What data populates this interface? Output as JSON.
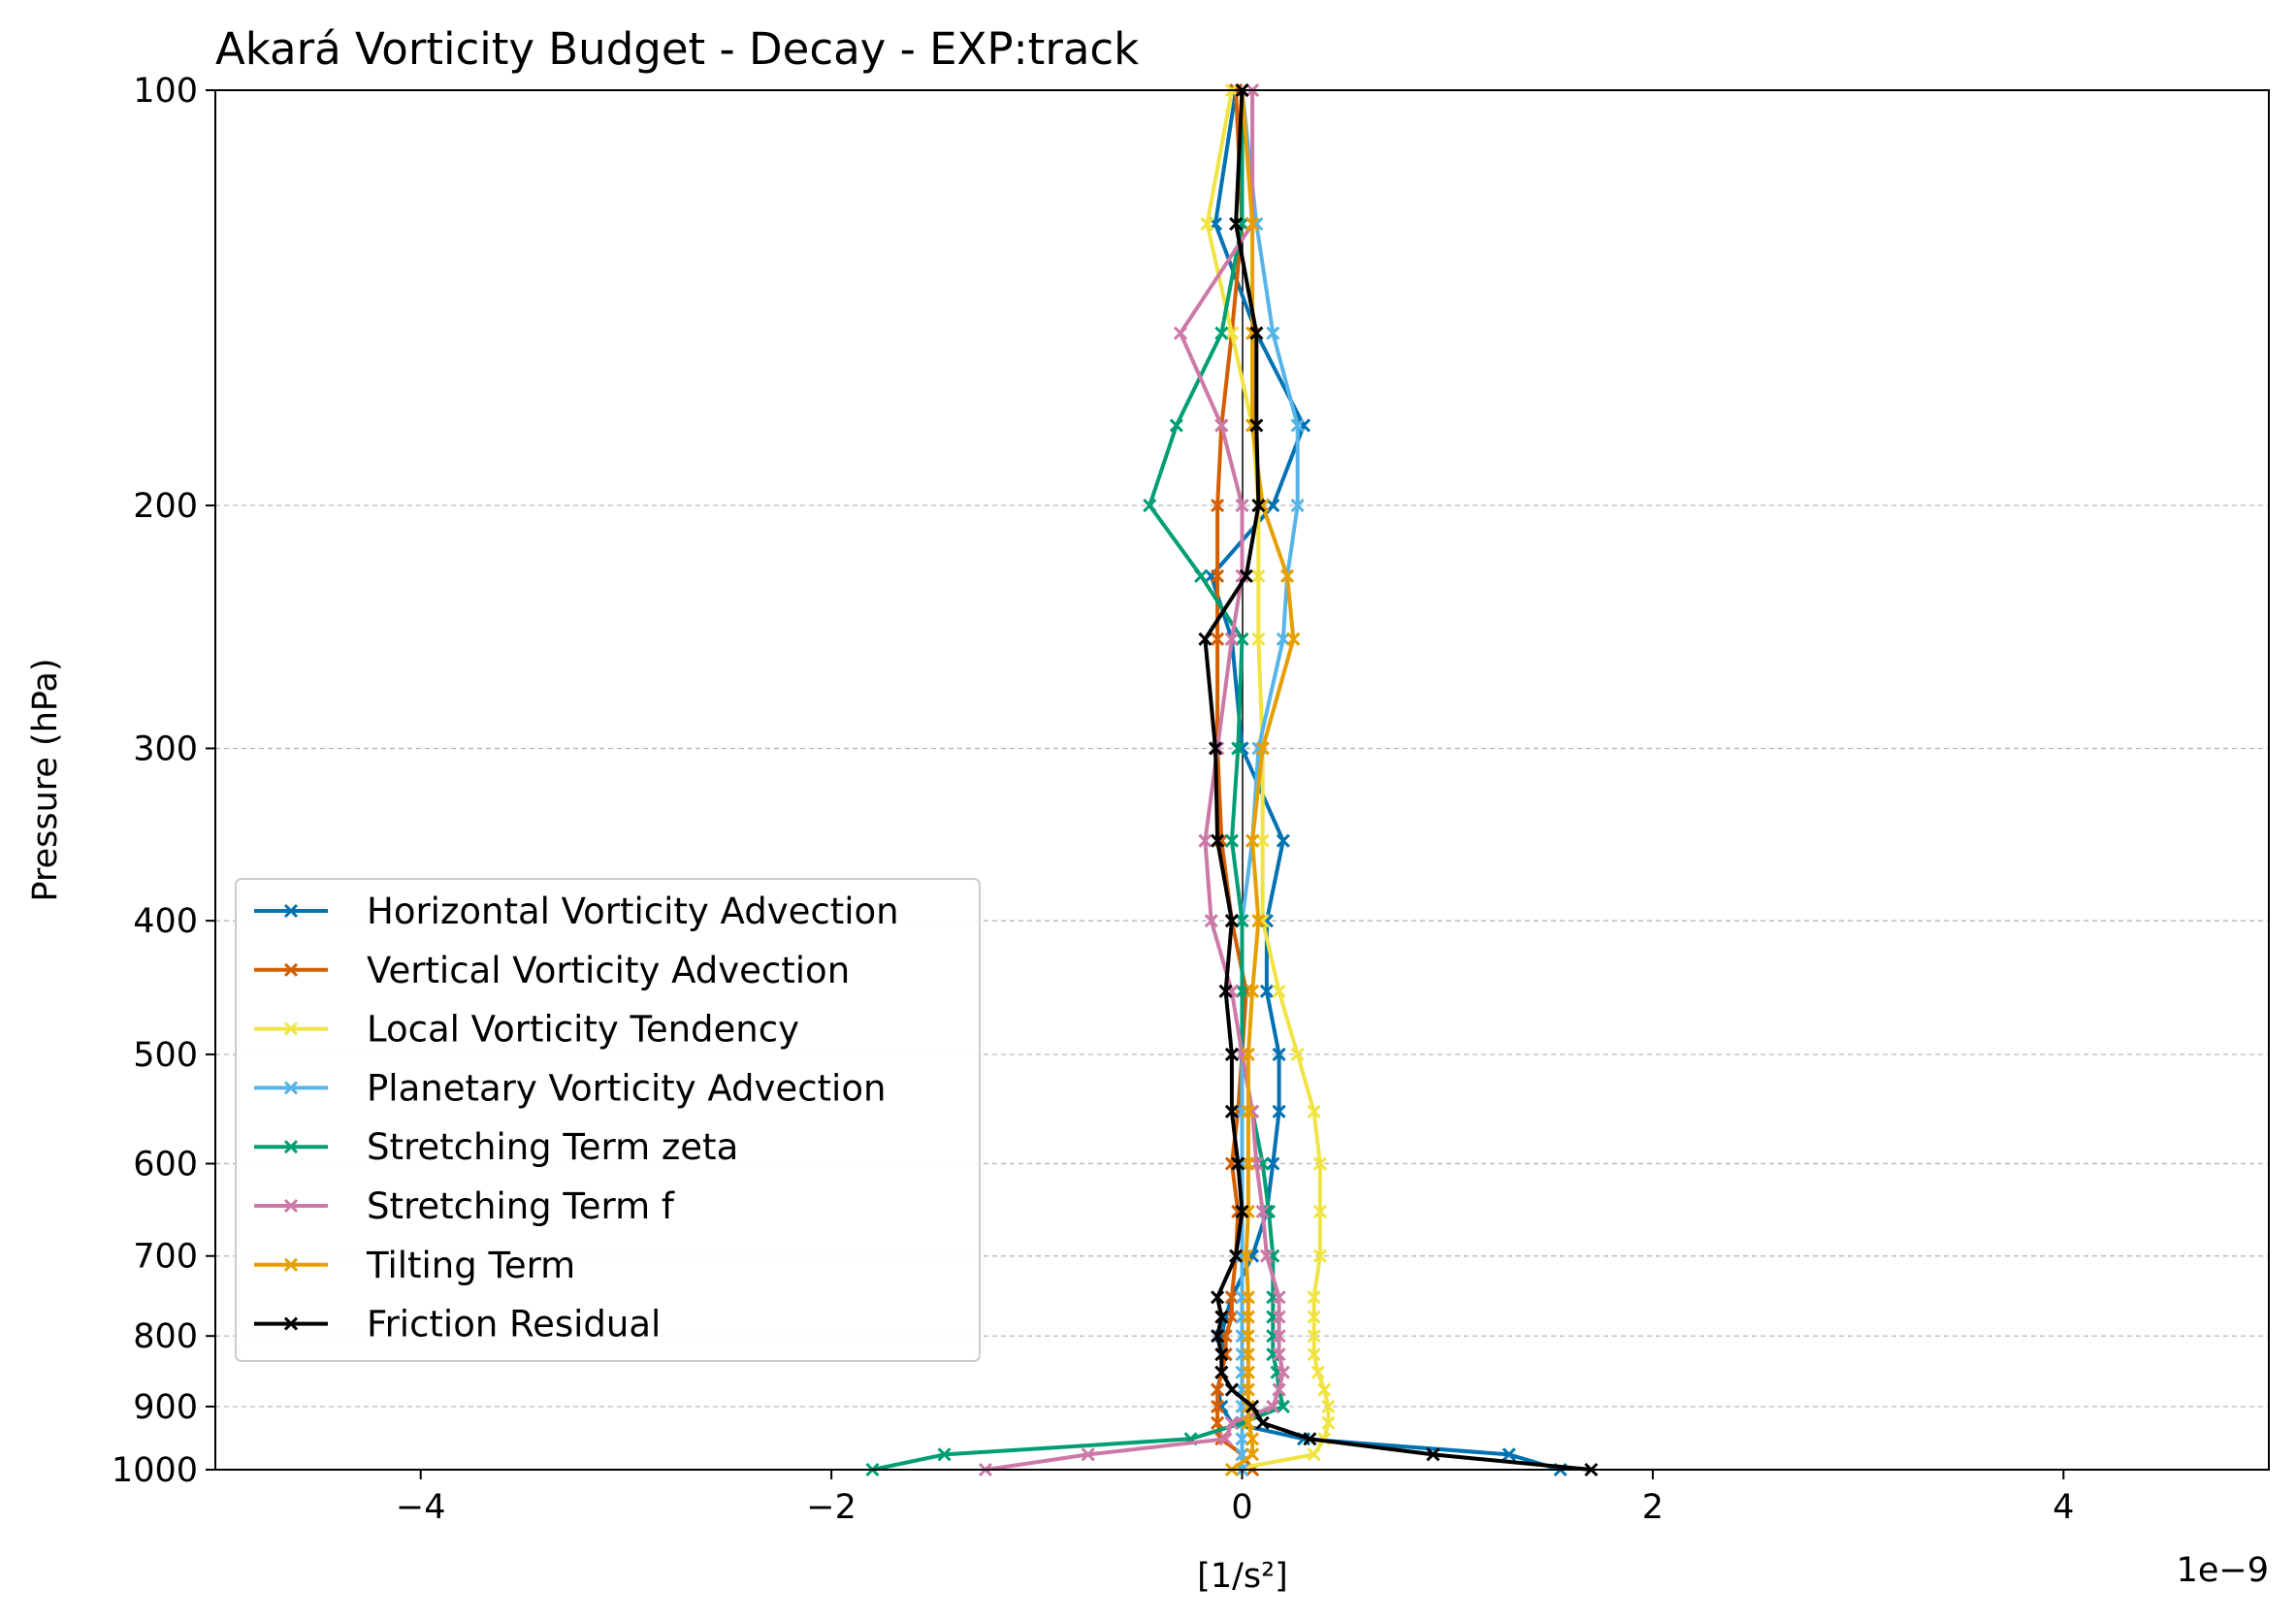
{
  "chart_data": {
    "type": "line",
    "title": "Akará Vorticity Budget - Decay - EXP:track",
    "xlabel": "[1/s²]",
    "ylabel": "Pressure (hPa)",
    "x_offset_label": "1e−9",
    "xlim": [
      -5e-09,
      5e-09
    ],
    "ylim": [
      1000,
      100
    ],
    "y_scale": "log",
    "y_inverted": true,
    "grid": "horizontal dashed at pressure ticks",
    "legend_position": "lower-left",
    "x_ticks": [
      {
        "value": -4e-09,
        "label": "−4"
      },
      {
        "value": -2e-09,
        "label": "−2"
      },
      {
        "value": 0,
        "label": "0"
      },
      {
        "value": 2e-09,
        "label": "2"
      },
      {
        "value": 4e-09,
        "label": "4"
      }
    ],
    "y_ticks": [
      {
        "value": 100,
        "label": "100"
      },
      {
        "value": 200,
        "label": "200"
      },
      {
        "value": 300,
        "label": "300"
      },
      {
        "value": 400,
        "label": "400"
      },
      {
        "value": 500,
        "label": "500"
      },
      {
        "value": 600,
        "label": "600"
      },
      {
        "value": 700,
        "label": "700"
      },
      {
        "value": 800,
        "label": "800"
      },
      {
        "value": 900,
        "label": "900"
      },
      {
        "value": 1000,
        "label": "1000"
      }
    ],
    "levels": [
      1000,
      975,
      950,
      925,
      900,
      875,
      850,
      825,
      800,
      775,
      750,
      700,
      650,
      600,
      550,
      500,
      450,
      400,
      350,
      300,
      250,
      225,
      200,
      175,
      150,
      125,
      100
    ],
    "series": [
      {
        "name": "Horizontal Vorticity Advection",
        "color": "#0072b2",
        "values": [
          1.55e-09,
          1.3e-09,
          3e-10,
          -5e-11,
          -1e-10,
          -1.2e-10,
          -1e-10,
          -8e-11,
          -1e-10,
          -8e-11,
          -5e-11,
          5e-11,
          1.2e-10,
          1.5e-10,
          1.8e-10,
          1.8e-10,
          1.2e-10,
          1.2e-10,
          2e-10,
          0.0,
          -5e-11,
          -1.5e-10,
          1.5e-10,
          3e-10,
          7e-11,
          -1.3e-10,
          -3e-11
        ]
      },
      {
        "name": "Vertical Vorticity Advection",
        "color": "#d55e00",
        "values": [
          5e-11,
          0.0,
          -1e-10,
          -1.2e-10,
          -1.2e-10,
          -1.2e-10,
          -1e-10,
          -8e-11,
          -8e-11,
          -5e-11,
          -5e-11,
          -3e-11,
          -2e-11,
          -5e-11,
          -2e-11,
          0.0,
          2e-11,
          -5e-11,
          -1e-10,
          -1.2e-10,
          -1.2e-10,
          -1.2e-10,
          -1.2e-10,
          -1e-10,
          -5e-11,
          0.0,
          -3e-11
        ]
      },
      {
        "name": "Local Vorticity Tendency",
        "color": "#f0e442",
        "values": [
          -5e-11,
          3.5e-10,
          4e-10,
          4.2e-10,
          4.2e-10,
          4e-10,
          3.7e-10,
          3.5e-10,
          3.5e-10,
          3.5e-10,
          3.5e-10,
          3.8e-10,
          3.8e-10,
          3.8e-10,
          3.5e-10,
          2.7e-10,
          1.8e-10,
          1e-10,
          1e-10,
          1e-10,
          8e-11,
          8e-11,
          8e-11,
          5e-11,
          -5e-11,
          -1.7e-10,
          -5e-11
        ]
      },
      {
        "name": "Planetary Vorticity Advection",
        "color": "#56b4e9",
        "values": [
          0.0,
          0.0,
          0.0,
          0.0,
          0.0,
          0.0,
          0.0,
          0.0,
          0.0,
          0.0,
          0.0,
          0.0,
          0.0,
          0.0,
          0.0,
          0.0,
          0.0,
          0.0,
          5e-11,
          8e-11,
          2e-10,
          2.2e-10,
          2.7e-10,
          2.7e-10,
          1.5e-10,
          7e-11,
          0.0
        ]
      },
      {
        "name": "Stretching Term zeta",
        "color": "#009e73",
        "values": [
          -1.8e-09,
          -1.45e-09,
          -2.5e-10,
          0.0,
          2e-10,
          1.8e-10,
          1.7e-10,
          1.5e-10,
          1.5e-10,
          1.5e-10,
          1.5e-10,
          1.5e-10,
          1.3e-10,
          1e-10,
          5e-11,
          0.0,
          0.0,
          0.0,
          -5e-11,
          -2e-11,
          0.0,
          -2e-10,
          -4.5e-10,
          -3.2e-10,
          -1e-10,
          0.0,
          0.0
        ]
      },
      {
        "name": "Stretching Term f",
        "color": "#cc79a7",
        "values": [
          -1.25e-09,
          -7.5e-10,
          -8e-11,
          -5e-11,
          1.5e-10,
          1.8e-10,
          2e-10,
          1.8e-10,
          1.8e-10,
          1.8e-10,
          1.8e-10,
          1.2e-10,
          1e-10,
          7e-11,
          5e-11,
          0.0,
          -5e-11,
          -1.5e-10,
          -1.8e-10,
          -1.2e-10,
          -5e-11,
          0.0,
          0.0,
          -1e-10,
          -3e-10,
          5e-11,
          5e-11
        ]
      },
      {
        "name": "Tilting Term",
        "color": "#e69f00",
        "values": [
          -5e-11,
          5e-11,
          5e-11,
          3e-11,
          3e-11,
          3e-11,
          3e-11,
          3e-11,
          3e-11,
          3e-11,
          3e-11,
          2e-11,
          3e-11,
          3e-11,
          3e-11,
          3e-11,
          5e-11,
          8e-11,
          5e-11,
          1e-10,
          2.5e-10,
          2.2e-10,
          1e-10,
          5e-11,
          5e-11,
          5e-11,
          0.0
        ]
      },
      {
        "name": "Friction Residual",
        "color": "#000000",
        "values": [
          1.7e-09,
          9.3e-10,
          3.3e-10,
          1e-10,
          5e-11,
          -5e-11,
          -1e-10,
          -1e-10,
          -1.2e-10,
          -1e-10,
          -1.2e-10,
          -3e-11,
          0.0,
          -2e-11,
          -5e-11,
          -5e-11,
          -8e-11,
          -5e-11,
          -1.2e-10,
          -1.3e-10,
          -1.8e-10,
          2e-11,
          8e-11,
          7e-11,
          7e-11,
          -3e-11,
          0.0
        ]
      }
    ]
  }
}
